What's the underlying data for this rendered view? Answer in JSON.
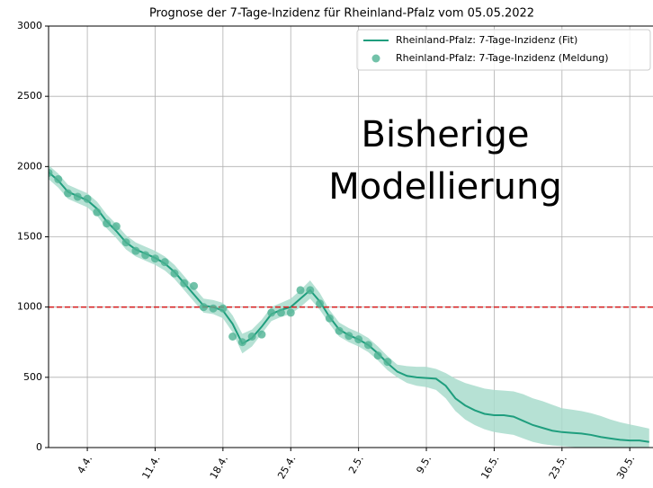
{
  "chart_data": {
    "type": "line",
    "title": "Prognose der 7-Tage-Inzidenz für Rheinland-Pfalz vom 05.05.2022",
    "categories": [
      null,
      null,
      null,
      null,
      "4.4.",
      null,
      null,
      null,
      null,
      null,
      null,
      "11.4.",
      null,
      null,
      null,
      null,
      null,
      null,
      "18.4.",
      null,
      null,
      null,
      null,
      null,
      null,
      "25.4.",
      null,
      null,
      null,
      null,
      null,
      null,
      "2.5.",
      null,
      null,
      null,
      null,
      null,
      null,
      "9.5.",
      null,
      null,
      null,
      null,
      null,
      null,
      "16.5.",
      null,
      null,
      null,
      null,
      null,
      null,
      "23.5.",
      null,
      null,
      null,
      null,
      null,
      null,
      "30.5.",
      null,
      null
    ],
    "series": [
      {
        "name": "Rheinland-Pfalz: 7-Tage-Inzidenz (Fit)",
        "type": "line",
        "color": "#1f9e7e",
        "band_color": "#a9dccc",
        "values": [
          1960,
          1900,
          1820,
          1790,
          1760,
          1700,
          1610,
          1540,
          1460,
          1410,
          1380,
          1350,
          1310,
          1250,
          1170,
          1090,
          1010,
          1000,
          975,
          880,
          740,
          780,
          860,
          950,
          980,
          1000,
          1060,
          1120,
          1040,
          930,
          840,
          800,
          770,
          730,
          670,
          600,
          540,
          510,
          500,
          495,
          490,
          440,
          350,
          300,
          265,
          240,
          230,
          230,
          220,
          190,
          160,
          140,
          120,
          110,
          105,
          100,
          90,
          75,
          65,
          55,
          50,
          50,
          40
        ],
        "band": {
          "upper": [
            2010,
            1950,
            1870,
            1840,
            1810,
            1750,
            1660,
            1590,
            1510,
            1460,
            1430,
            1400,
            1360,
            1300,
            1220,
            1140,
            1060,
            1050,
            1030,
            940,
            810,
            840,
            910,
            1000,
            1030,
            1060,
            1120,
            1190,
            1100,
            980,
            890,
            850,
            820,
            780,
            720,
            650,
            590,
            580,
            575,
            575,
            560,
            530,
            490,
            460,
            440,
            420,
            410,
            405,
            400,
            380,
            350,
            330,
            305,
            280,
            270,
            260,
            245,
            225,
            200,
            180,
            165,
            150,
            135
          ],
          "lower": [
            1910,
            1850,
            1770,
            1740,
            1710,
            1650,
            1560,
            1490,
            1410,
            1360,
            1330,
            1300,
            1260,
            1200,
            1120,
            1040,
            960,
            950,
            920,
            820,
            670,
            720,
            810,
            900,
            930,
            950,
            1000,
            1060,
            980,
            880,
            790,
            750,
            720,
            680,
            620,
            550,
            500,
            460,
            440,
            430,
            410,
            350,
            260,
            200,
            160,
            130,
            110,
            100,
            90,
            65,
            40,
            25,
            15,
            10,
            5,
            0,
            0,
            0,
            0,
            0,
            0,
            0,
            0
          ]
        }
      },
      {
        "name": "Rheinland-Pfalz: 7-Tage-Inzidenz (Meldung)",
        "type": "scatter",
        "color": "#4fb394",
        "values": [
          1955,
          1910,
          1810,
          1785,
          1770,
          1675,
          1595,
          1575,
          1460,
          1400,
          1370,
          1345,
          1320,
          1240,
          1170,
          1150,
          1000,
          990,
          990,
          790,
          750,
          790,
          805,
          960,
          960,
          960,
          1120,
          1120,
          1025,
          920,
          830,
          795,
          770,
          730,
          655,
          610,
          null,
          null,
          null,
          null,
          null,
          null,
          null,
          null,
          null,
          null,
          null,
          null,
          null,
          null,
          null,
          null,
          null,
          null,
          null,
          null,
          null,
          null,
          null,
          null,
          null,
          null,
          null
        ]
      }
    ],
    "threshold": {
      "value": 1000,
      "color": "#d62728"
    },
    "annotation": [
      "Bisherige",
      "Modellierung"
    ],
    "ylim": [
      0,
      3000
    ],
    "yticks": [
      0,
      500,
      1000,
      1500,
      2000,
      2500,
      3000
    ],
    "grid": true,
    "legend": "upper right"
  }
}
